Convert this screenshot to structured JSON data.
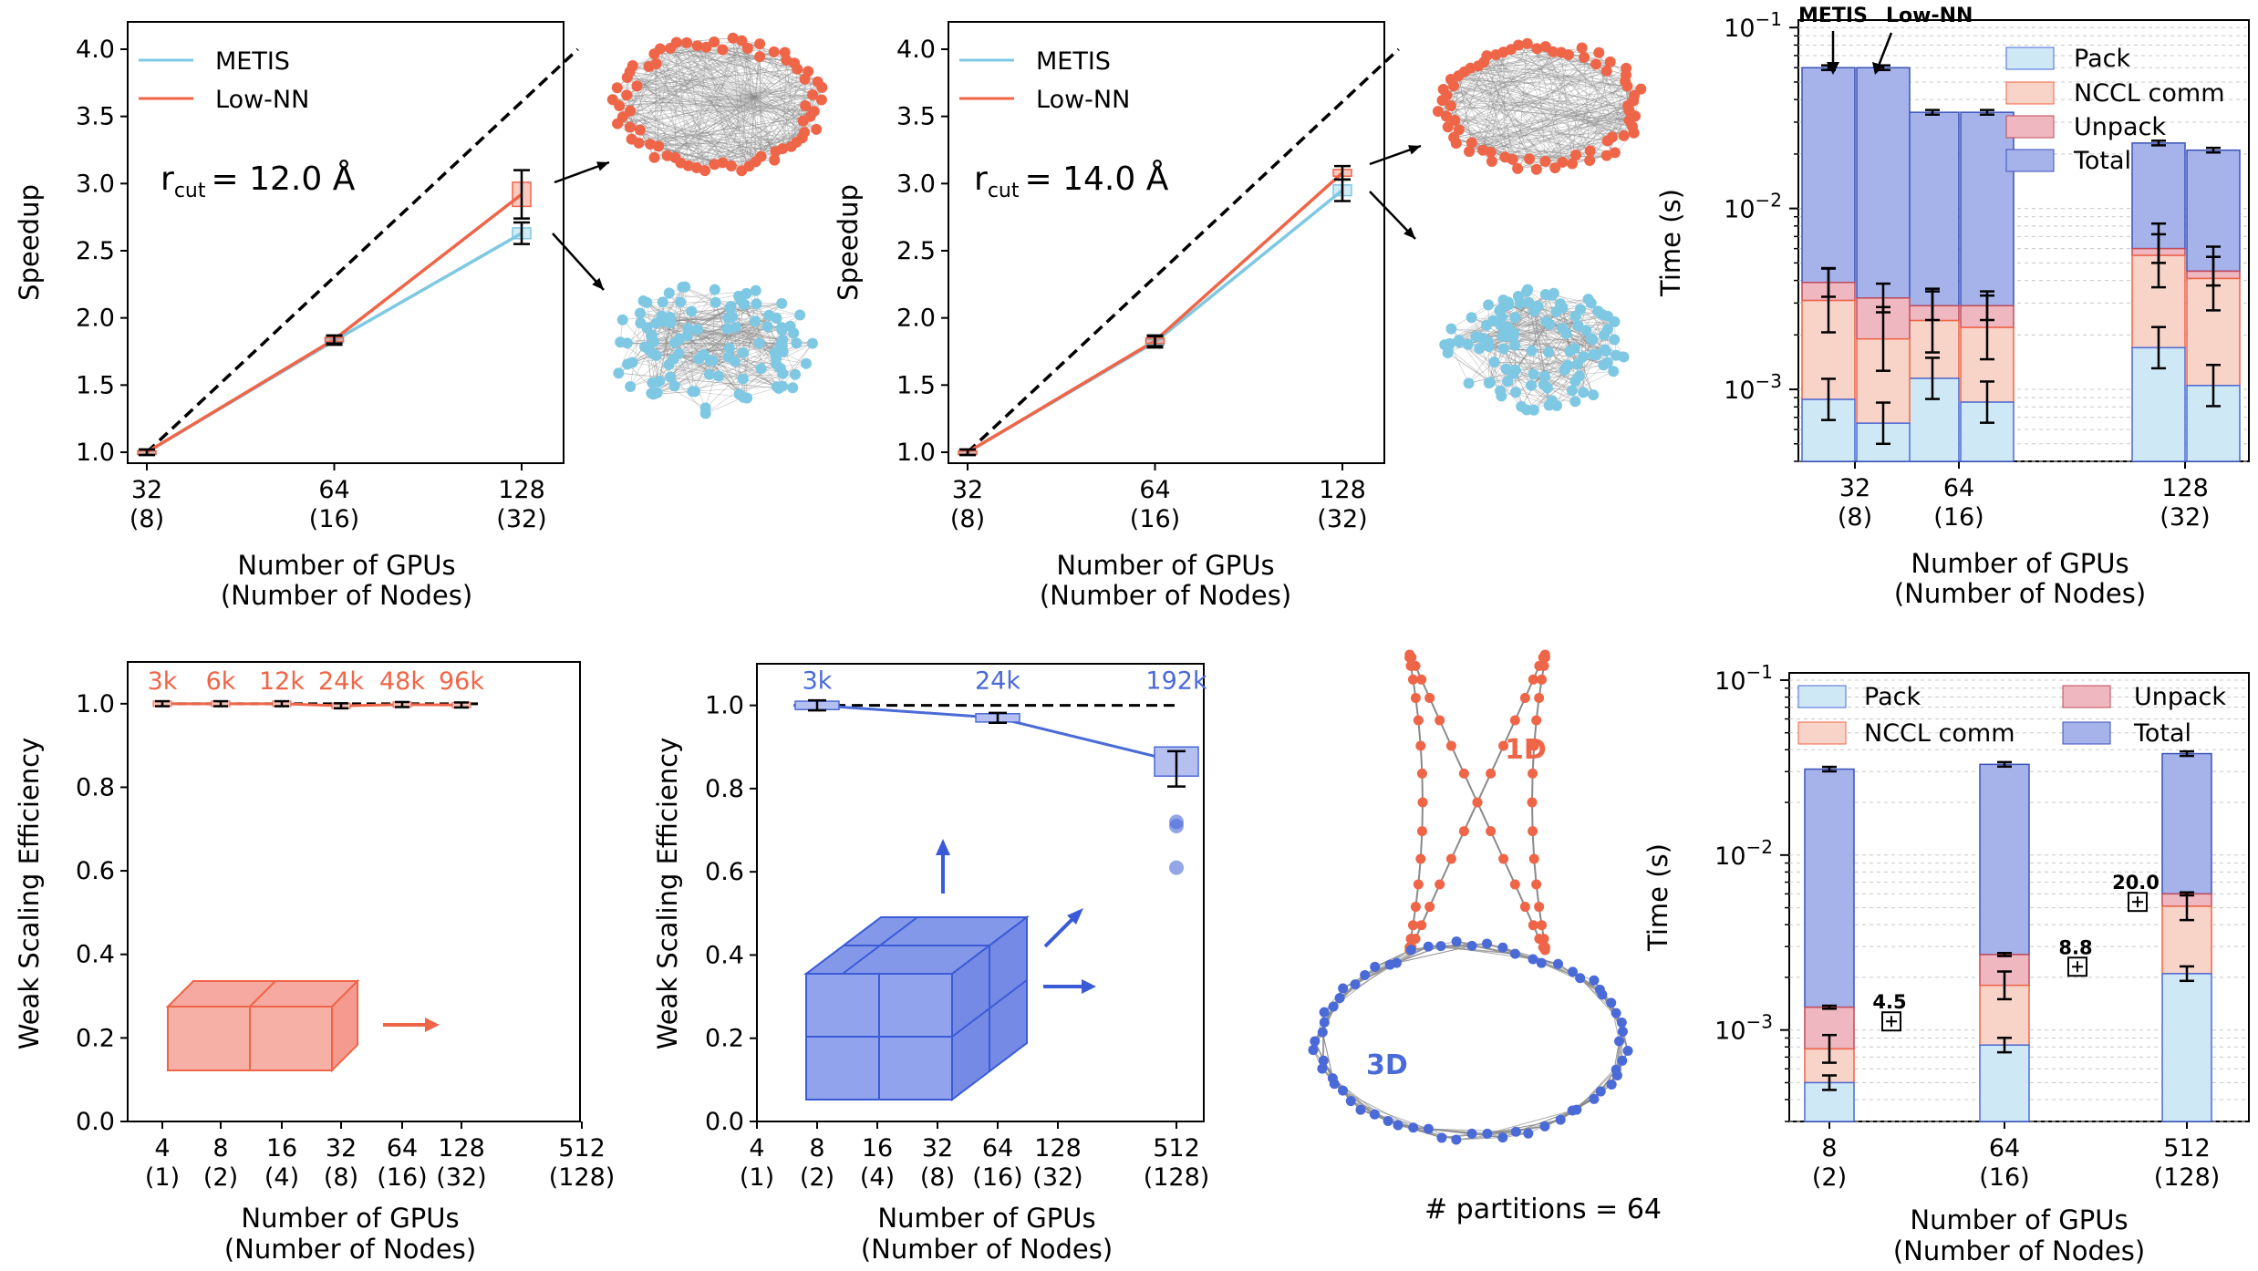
{
  "colors": {
    "metis": "#7ec8e3",
    "lownn": "#ef6548",
    "ideal": "#000000",
    "pack": "#cfe8f6",
    "nccl": "#f8d3c8",
    "unpack": "#efb8c0",
    "total": "#a5b3ea",
    "weak3d": "#4a6ad8",
    "graph_edge": "#8a8a8a"
  },
  "axis_titles": {
    "x_line1": "Number of GPUs",
    "x_line2": "(Number of Nodes)",
    "speedup": "Speedup",
    "weak": "Weak Scaling Efficiency",
    "time": "Time (s)"
  },
  "panel_a": {
    "annotation_r": "r",
    "annotation_sub": "cut",
    "annotation_val": "= 12.0 Å"
  },
  "panel_b": {
    "annotation_r": "r",
    "annotation_sub": "cut",
    "annotation_val": "= 14.0 Å"
  },
  "panel_c": {
    "label_metis": "METIS",
    "label_lownn": "Low-NN"
  },
  "panel_g": {
    "label_1d": "1D",
    "label_3d": "3D",
    "caption": "# partitions = 64"
  },
  "chart_data": [
    {
      "id": "a",
      "type": "line",
      "xlabel": "Number of GPUs (Number of Nodes)",
      "ylabel": "Speedup",
      "x_ticks": [
        [
          "32",
          "(8)"
        ],
        [
          "64",
          "(16)"
        ],
        [
          "128",
          "(32)"
        ]
      ],
      "ylim": [
        0.9,
        4.2
      ],
      "y_ticks": [
        "1.0",
        "1.5",
        "2.0",
        "2.5",
        "3.0",
        "3.5",
        "4.0"
      ],
      "ideal": [
        [
          0,
          1.0
        ],
        [
          2.3,
          4.0
        ]
      ],
      "series": [
        {
          "name": "METIS",
          "values": [
            1.0,
            1.83,
            2.63
          ],
          "err": [
            0.02,
            0.03,
            0.08
          ]
        },
        {
          "name": "Low-NN",
          "values": [
            1.0,
            1.84,
            2.92
          ],
          "err": [
            0.02,
            0.03,
            0.18
          ]
        }
      ]
    },
    {
      "id": "b",
      "type": "line",
      "xlabel": "Number of GPUs (Number of Nodes)",
      "ylabel": "Speedup",
      "x_ticks": [
        [
          "32",
          "(8)"
        ],
        [
          "64",
          "(16)"
        ],
        [
          "128",
          "(32)"
        ]
      ],
      "ylim": [
        0.9,
        4.2
      ],
      "y_ticks": [
        "1.0",
        "1.5",
        "2.0",
        "2.5",
        "3.0",
        "3.5",
        "4.0"
      ],
      "ideal": [
        [
          0,
          1.0
        ],
        [
          2.3,
          4.0
        ]
      ],
      "series": [
        {
          "name": "METIS",
          "values": [
            1.0,
            1.82,
            2.95
          ],
          "err": [
            0.02,
            0.04,
            0.08
          ]
        },
        {
          "name": "Low-NN",
          "values": [
            1.0,
            1.83,
            3.08
          ],
          "err": [
            0.02,
            0.04,
            0.05
          ]
        }
      ]
    },
    {
      "id": "c",
      "type": "bar",
      "log_y": true,
      "ylabel": "Time (s)",
      "x_ticks": [
        [
          "32",
          "(8)"
        ],
        [
          "64",
          "(16)"
        ],
        [
          "128",
          "(32)"
        ]
      ],
      "ylim": [
        0.0004,
        0.11
      ],
      "y_ticks": [
        "10^-3",
        "10^-2",
        "10^-1"
      ],
      "legend": [
        "Pack",
        "NCCL comm",
        "Unpack",
        "Total"
      ],
      "series": [
        {
          "name": "METIS",
          "pack": [
            0.00088,
            0.00115,
            0.0017
          ],
          "nccl": [
            0.0031,
            0.0024,
            0.0055
          ],
          "unpack": [
            0.0039,
            0.0029,
            0.006
          ],
          "total": [
            0.06,
            0.034,
            0.023
          ]
        },
        {
          "name": "Low-NN",
          "pack": [
            0.00065,
            0.00085,
            0.00105
          ],
          "nccl": [
            0.0019,
            0.0022,
            0.0041
          ],
          "unpack": [
            0.0032,
            0.0029,
            0.0045
          ],
          "total": [
            0.06,
            0.034,
            0.021
          ]
        }
      ]
    },
    {
      "id": "d",
      "type": "line",
      "xlabel": "Number of GPUs (Number of Nodes)",
      "ylabel": "Weak Scaling Efficiency",
      "x_ticks": [
        [
          "4",
          "(1)"
        ],
        [
          "8",
          "(2)"
        ],
        [
          "16",
          "(4)"
        ],
        [
          "32",
          "(8)"
        ],
        [
          "64",
          "(16)"
        ],
        [
          "128",
          "(32)"
        ],
        [
          "512",
          "(128)"
        ]
      ],
      "ylim": [
        0.0,
        1.1
      ],
      "y_ticks": [
        "0.0",
        "0.2",
        "0.4",
        "0.6",
        "0.8",
        "1.0"
      ],
      "size_labels": [
        "3k",
        "6k",
        "12k",
        "24k",
        "48k",
        "96k"
      ],
      "values": [
        1.0,
        1.0,
        1.0,
        0.995,
        0.998,
        0.997
      ]
    },
    {
      "id": "e",
      "type": "line",
      "xlabel": "Number of GPUs (Number of Nodes)",
      "ylabel": "Weak Scaling Efficiency",
      "x_ticks": [
        [
          "4",
          "(1)"
        ],
        [
          "8",
          "(2)"
        ],
        [
          "16",
          "(4)"
        ],
        [
          "32",
          "(8)"
        ],
        [
          "64",
          "(16)"
        ],
        [
          "128",
          "(32)"
        ],
        [
          "512",
          "(128)"
        ]
      ],
      "ylim": [
        0.0,
        1.1
      ],
      "y_ticks": [
        "0.0",
        "0.2",
        "0.4",
        "0.6",
        "0.8",
        "1.0"
      ],
      "size_labels": [
        "3k",
        "24k",
        "192k"
      ],
      "values": [
        1.0,
        0.97,
        0.865
      ],
      "outliers": [
        0.72,
        0.71,
        0.61
      ]
    },
    {
      "id": "f",
      "type": "bar",
      "log_y": true,
      "ylabel": "Time (s)",
      "x_ticks": [
        [
          "8",
          "(2)"
        ],
        [
          "64",
          "(16)"
        ],
        [
          "512",
          "(128)"
        ]
      ],
      "ylim": [
        0.0003,
        0.11
      ],
      "y_ticks": [
        "10^-3",
        "10^-2",
        "10^-1"
      ],
      "legend": [
        "Pack",
        "Unpack",
        "NCCL comm",
        "Total"
      ],
      "pack": [
        0.0005,
        0.00082,
        0.0021
      ],
      "nccl": [
        0.00078,
        0.0018,
        0.0051
      ],
      "unpack": [
        0.00135,
        0.0027,
        0.006
      ],
      "total": [
        0.031,
        0.033,
        0.038
      ],
      "ratio_labels": [
        "4.5",
        "8.8",
        "20.0"
      ],
      "ratio_values": [
        0.00112,
        0.0023,
        0.0054
      ]
    }
  ]
}
